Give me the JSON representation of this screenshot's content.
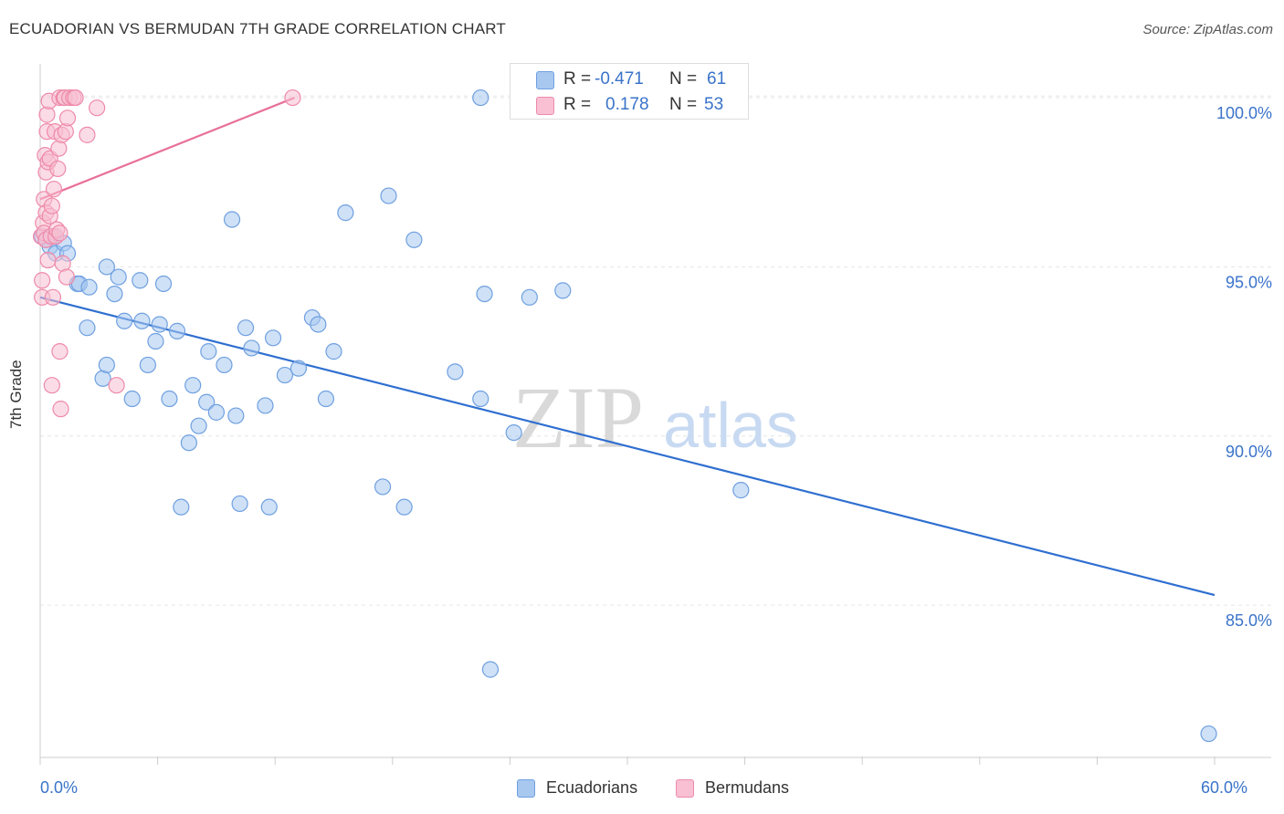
{
  "title": "ECUADORIAN VS BERMUDAN 7TH GRADE CORRELATION CHART",
  "source": "Source: ZipAtlas.com",
  "watermark": {
    "zip": "ZIP",
    "atlas": "atlas"
  },
  "stats": [
    {
      "r_label": "R =",
      "r_value": "-0.471",
      "n_label": "N =",
      "n_value": "61",
      "color": "#a8c8f0",
      "border": "#6fa0e0"
    },
    {
      "r_label": "R =",
      "r_value": "0.178",
      "n_label": "N =",
      "n_value": "53",
      "color": "#f8c0d2",
      "border": "#ee8aaa"
    }
  ],
  "legend": {
    "ecuadorians": "Ecuadorians",
    "bermudans": "Bermudans"
  },
  "colors": {
    "ecuador_fill": "#a8c8f0",
    "ecuador_stroke": "#6fa0e0",
    "ecuador_line": "#2f6fd0",
    "bermuda_fill": "#f8c0d2",
    "bermuda_stroke": "#ee8aaa",
    "bermuda_line": "#e8709a",
    "tick_text": "#3a73c9",
    "grid": "#e6e6e6"
  },
  "chart_data": {
    "type": "scatter",
    "title": "ECUADORIAN VS BERMUDAN 7TH GRADE CORRELATION CHART",
    "xlabel": "",
    "ylabel": "7th Grade",
    "xlim": [
      0,
      60
    ],
    "ylim": [
      80.5,
      101
    ],
    "x_tick_labels": [
      {
        "value": 0,
        "label": "0.0%"
      },
      {
        "value": 60,
        "label": "60.0%"
      }
    ],
    "y_tick_labels": [
      {
        "value": 100,
        "label": "100.0%"
      },
      {
        "value": 95,
        "label": "95.0%"
      },
      {
        "value": 90,
        "label": "90.0%"
      },
      {
        "value": 85,
        "label": "85.0%"
      }
    ],
    "x_minor_ticks": [
      0,
      6,
      12,
      18,
      24,
      30,
      36,
      42,
      48,
      54,
      60
    ],
    "series": [
      {
        "name": "Ecuadorians",
        "trend": {
          "x": [
            0,
            60
          ],
          "y": [
            94.1,
            85.3
          ]
        },
        "points": [
          {
            "x": 0.1,
            "y": 95.9
          },
          {
            "x": 0.3,
            "y": 95.8
          },
          {
            "x": 0.5,
            "y": 95.6
          },
          {
            "x": 0.7,
            "y": 95.9
          },
          {
            "x": 0.8,
            "y": 95.4
          },
          {
            "x": 1.2,
            "y": 95.7
          },
          {
            "x": 1.4,
            "y": 95.4
          },
          {
            "x": 1.9,
            "y": 94.5
          },
          {
            "x": 2.0,
            "y": 94.5
          },
          {
            "x": 2.4,
            "y": 93.2
          },
          {
            "x": 2.5,
            "y": 94.4
          },
          {
            "x": 3.2,
            "y": 91.7
          },
          {
            "x": 3.4,
            "y": 92.1
          },
          {
            "x": 3.4,
            "y": 95.0
          },
          {
            "x": 3.8,
            "y": 94.2
          },
          {
            "x": 4.0,
            "y": 94.7
          },
          {
            "x": 4.3,
            "y": 93.4
          },
          {
            "x": 4.7,
            "y": 91.1
          },
          {
            "x": 5.1,
            "y": 94.6
          },
          {
            "x": 5.2,
            "y": 93.4
          },
          {
            "x": 5.5,
            "y": 92.1
          },
          {
            "x": 5.9,
            "y": 92.8
          },
          {
            "x": 6.1,
            "y": 93.3
          },
          {
            "x": 6.3,
            "y": 94.5
          },
          {
            "x": 6.6,
            "y": 91.1
          },
          {
            "x": 7.0,
            "y": 93.1
          },
          {
            "x": 7.2,
            "y": 87.9
          },
          {
            "x": 7.6,
            "y": 89.8
          },
          {
            "x": 7.8,
            "y": 91.5
          },
          {
            "x": 8.1,
            "y": 90.3
          },
          {
            "x": 8.5,
            "y": 91.0
          },
          {
            "x": 8.6,
            "y": 92.5
          },
          {
            "x": 9.0,
            "y": 90.7
          },
          {
            "x": 9.4,
            "y": 92.1
          },
          {
            "x": 9.8,
            "y": 96.4
          },
          {
            "x": 10.0,
            "y": 90.6
          },
          {
            "x": 10.2,
            "y": 88.0
          },
          {
            "x": 10.5,
            "y": 93.2
          },
          {
            "x": 10.8,
            "y": 92.6
          },
          {
            "x": 11.5,
            "y": 90.9
          },
          {
            "x": 11.7,
            "y": 87.9
          },
          {
            "x": 11.9,
            "y": 92.9
          },
          {
            "x": 12.5,
            "y": 91.8
          },
          {
            "x": 13.2,
            "y": 92.0
          },
          {
            "x": 13.9,
            "y": 93.5
          },
          {
            "x": 14.2,
            "y": 93.3
          },
          {
            "x": 14.6,
            "y": 91.1
          },
          {
            "x": 15.0,
            "y": 92.5
          },
          {
            "x": 15.6,
            "y": 96.6
          },
          {
            "x": 17.5,
            "y": 88.5
          },
          {
            "x": 17.8,
            "y": 97.1
          },
          {
            "x": 18.6,
            "y": 87.9
          },
          {
            "x": 19.1,
            "y": 95.8
          },
          {
            "x": 21.2,
            "y": 91.9
          },
          {
            "x": 22.5,
            "y": 91.1
          },
          {
            "x": 22.5,
            "y": 100.0
          },
          {
            "x": 22.7,
            "y": 94.2
          },
          {
            "x": 23.0,
            "y": 83.1
          },
          {
            "x": 24.2,
            "y": 90.1
          },
          {
            "x": 25.0,
            "y": 94.1
          },
          {
            "x": 26.7,
            "y": 94.3
          },
          {
            "x": 35.8,
            "y": 88.4
          },
          {
            "x": 59.7,
            "y": 81.2
          }
        ]
      },
      {
        "name": "Bermudans",
        "trend": {
          "x": [
            0,
            13
          ],
          "y": [
            97.0,
            100.0
          ]
        },
        "points": [
          {
            "x": 0.05,
            "y": 95.9
          },
          {
            "x": 0.1,
            "y": 94.6
          },
          {
            "x": 0.1,
            "y": 94.1
          },
          {
            "x": 0.15,
            "y": 96.3
          },
          {
            "x": 0.2,
            "y": 96.0
          },
          {
            "x": 0.2,
            "y": 97.0
          },
          {
            "x": 0.25,
            "y": 98.3
          },
          {
            "x": 0.3,
            "y": 97.8
          },
          {
            "x": 0.3,
            "y": 96.6
          },
          {
            "x": 0.3,
            "y": 95.8
          },
          {
            "x": 0.35,
            "y": 99.0
          },
          {
            "x": 0.35,
            "y": 99.5
          },
          {
            "x": 0.4,
            "y": 98.1
          },
          {
            "x": 0.4,
            "y": 95.2
          },
          {
            "x": 0.45,
            "y": 99.9
          },
          {
            "x": 0.5,
            "y": 98.2
          },
          {
            "x": 0.5,
            "y": 96.5
          },
          {
            "x": 0.55,
            "y": 95.9
          },
          {
            "x": 0.6,
            "y": 91.5
          },
          {
            "x": 0.6,
            "y": 96.8
          },
          {
            "x": 0.65,
            "y": 94.1
          },
          {
            "x": 0.7,
            "y": 97.3
          },
          {
            "x": 0.75,
            "y": 99.0
          },
          {
            "x": 0.8,
            "y": 95.9
          },
          {
            "x": 0.85,
            "y": 96.1
          },
          {
            "x": 0.9,
            "y": 97.9
          },
          {
            "x": 0.95,
            "y": 98.5
          },
          {
            "x": 1.0,
            "y": 92.5
          },
          {
            "x": 1.0,
            "y": 96.0
          },
          {
            "x": 1.0,
            "y": 100.0
          },
          {
            "x": 1.05,
            "y": 90.8
          },
          {
            "x": 1.1,
            "y": 98.9
          },
          {
            "x": 1.15,
            "y": 95.1
          },
          {
            "x": 1.2,
            "y": 100.0
          },
          {
            "x": 1.25,
            "y": 100.0
          },
          {
            "x": 1.3,
            "y": 99.0
          },
          {
            "x": 1.35,
            "y": 94.7
          },
          {
            "x": 1.4,
            "y": 99.4
          },
          {
            "x": 1.5,
            "y": 100.0
          },
          {
            "x": 1.7,
            "y": 100.0
          },
          {
            "x": 1.8,
            "y": 100.0
          },
          {
            "x": 2.4,
            "y": 98.9
          },
          {
            "x": 2.9,
            "y": 99.7
          },
          {
            "x": 3.9,
            "y": 91.5
          },
          {
            "x": 12.9,
            "y": 100.0
          }
        ]
      }
    ]
  }
}
